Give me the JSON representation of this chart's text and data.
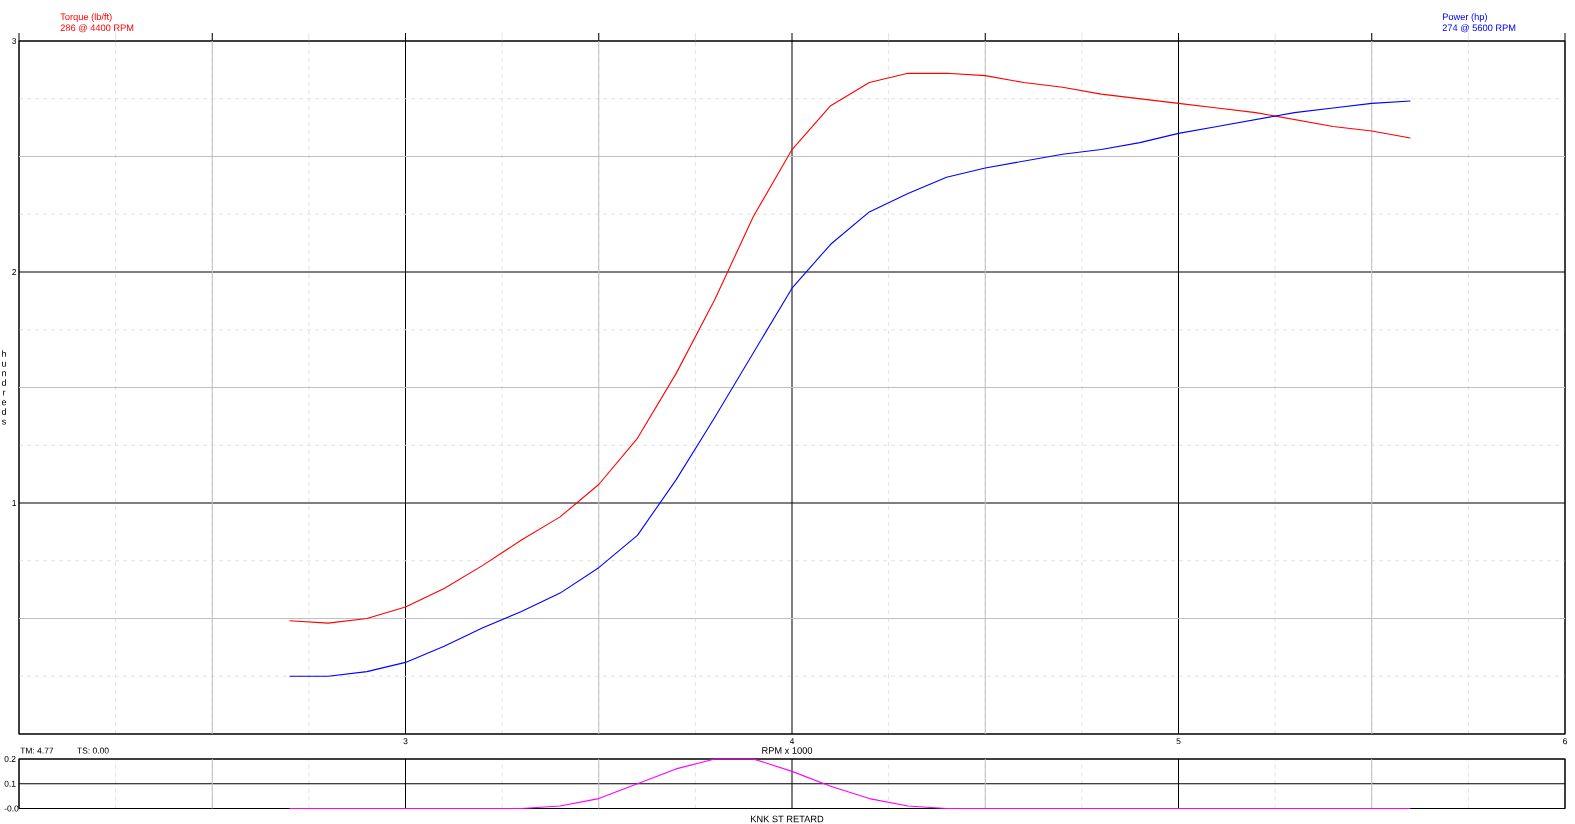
{
  "chart_data": [
    {
      "type": "line",
      "xlabel": "RPM x 1000",
      "ylabel": "hundreds",
      "x": [
        2.7,
        2.8,
        2.9,
        3.0,
        3.1,
        3.2,
        3.3,
        3.4,
        3.5,
        3.6,
        3.7,
        3.8,
        3.9,
        4.0,
        4.1,
        4.2,
        4.3,
        4.4,
        4.5,
        4.6,
        4.7,
        4.8,
        4.9,
        5.0,
        5.1,
        5.2,
        5.3,
        5.4,
        5.5,
        5.6
      ],
      "series": [
        {
          "name": "Torque (lb/ft)",
          "color": "#ff0000",
          "values": [
            0.49,
            0.48,
            0.5,
            0.55,
            0.63,
            0.73,
            0.84,
            0.94,
            1.08,
            1.28,
            1.56,
            1.88,
            2.24,
            2.53,
            2.72,
            2.82,
            2.86,
            2.86,
            2.85,
            2.82,
            2.8,
            2.77,
            2.75,
            2.73,
            2.71,
            2.69,
            2.66,
            2.63,
            2.61,
            2.58
          ]
        },
        {
          "name": "Power (hp)",
          "color": "#0000ff",
          "values": [
            0.25,
            0.25,
            0.27,
            0.31,
            0.38,
            0.46,
            0.53,
            0.61,
            0.72,
            0.86,
            1.1,
            1.37,
            1.65,
            1.93,
            2.12,
            2.26,
            2.34,
            2.41,
            2.45,
            2.48,
            2.51,
            2.53,
            2.56,
            2.6,
            2.63,
            2.66,
            2.69,
            2.71,
            2.73,
            2.74
          ]
        }
      ],
      "xlim": [
        2,
        6
      ],
      "xticks": [
        {
          "value": 2,
          "label": null
        },
        3,
        4,
        5,
        6
      ],
      "ylim": [
        0,
        3
      ],
      "yticks": [
        {
          "value": 0,
          "label": null
        },
        1,
        2,
        3
      ],
      "grid": true,
      "legend": "top",
      "annotations": [
        "286 @ 4400 RPM",
        "274 @ 5600 RPM"
      ]
    },
    {
      "type": "line",
      "xlabel": "KNK ST RETARD",
      "x": [
        2.7,
        2.8,
        2.9,
        3.0,
        3.1,
        3.2,
        3.3,
        3.4,
        3.5,
        3.6,
        3.7,
        3.8,
        3.9,
        4.0,
        4.1,
        4.2,
        4.3,
        4.4,
        4.5,
        4.6,
        4.7,
        4.8,
        4.9,
        5.0,
        5.1,
        5.2,
        5.3,
        5.4,
        5.5,
        5.6
      ],
      "series": [
        {
          "color": "#ff00ff",
          "values": [
            0,
            0,
            0,
            0,
            0,
            0,
            0,
            0.01,
            0.04,
            0.1,
            0.16,
            0.2,
            0.2,
            0.15,
            0.09,
            0.04,
            0.01,
            0,
            0,
            0,
            0,
            0,
            0,
            0,
            0,
            0,
            0,
            0,
            0,
            0
          ]
        }
      ],
      "xlim": [
        2,
        6
      ],
      "xticks": [
        {
          "value": 2,
          "label": null
        },
        3,
        4,
        5,
        6
      ],
      "ylim": [
        0,
        0.2
      ],
      "yticks": [
        {
          "value": 0,
          "label": "-0.0"
        },
        0.1,
        0.2
      ],
      "grid": true,
      "tick_labels": "y",
      "annotations": [
        "TM: 4.77",
        "TS: 0.00"
      ]
    }
  ]
}
